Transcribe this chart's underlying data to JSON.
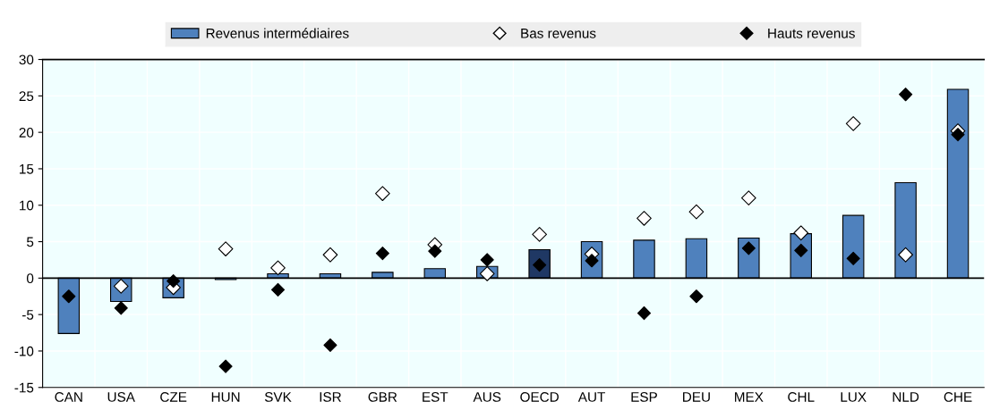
{
  "chart_data": {
    "type": "bar",
    "categories": [
      "CAN",
      "USA",
      "CZE",
      "HUN",
      "SVK",
      "ISR",
      "GBR",
      "EST",
      "AUS",
      "OECD",
      "AUT",
      "ESP",
      "DEU",
      "MEX",
      "CHL",
      "LUX",
      "NLD",
      "CHE"
    ],
    "series": [
      {
        "name": "Revenus intermédiaires",
        "color": "#4f81bd",
        "colors": [
          "#4f81bd",
          "#4f81bd",
          "#4f81bd",
          "#4f81bd",
          "#4f81bd",
          "#4f81bd",
          "#4f81bd",
          "#4f81bd",
          "#4f81bd",
          "#1f3864",
          "#4f81bd",
          "#4f81bd",
          "#4f81bd",
          "#4f81bd",
          "#4f81bd",
          "#4f81bd",
          "#4f81bd",
          "#4f81bd"
        ],
        "values": [
          -7.6,
          -3.2,
          -2.7,
          -0.2,
          0.6,
          0.6,
          0.8,
          1.3,
          1.6,
          3.9,
          5.0,
          5.2,
          5.4,
          5.5,
          6.1,
          8.6,
          13.1,
          25.9
        ]
      },
      {
        "name": "Bas revenus",
        "type": "scatter",
        "color": "#ffffff",
        "values": [
          null,
          -1.1,
          -1.3,
          4.0,
          1.4,
          3.2,
          11.6,
          4.6,
          0.6,
          6.0,
          3.3,
          8.2,
          9.1,
          11.0,
          6.2,
          21.2,
          3.2,
          20.2
        ]
      },
      {
        "name": "Hauts revenus",
        "type": "scatter",
        "color": "#000000",
        "values": [
          -2.5,
          -4.1,
          -0.4,
          -12.1,
          -1.6,
          -9.2,
          3.4,
          3.7,
          2.5,
          1.8,
          2.4,
          -4.8,
          -2.5,
          4.1,
          3.8,
          2.7,
          25.2,
          19.7
        ]
      }
    ],
    "ylim": [
      -15,
      30
    ],
    "yticks": [
      -15,
      -10,
      -5,
      0,
      5,
      10,
      15,
      20,
      25,
      30
    ],
    "grid": true,
    "legend": "top",
    "marker": "diamond"
  }
}
